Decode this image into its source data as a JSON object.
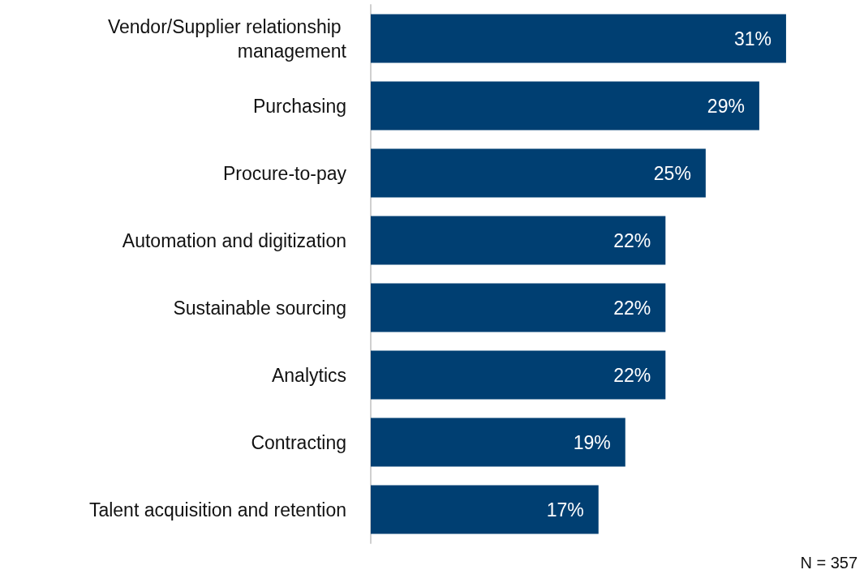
{
  "chart_data": {
    "type": "bar",
    "orientation": "horizontal",
    "categories": [
      "Vendor/Supplier relationship management",
      "Purchasing",
      "Procure-to-pay",
      "Automation and digitization",
      "Sustainable sourcing",
      "Analytics",
      "Contracting",
      "Talent acquisition and retention"
    ],
    "values": [
      31,
      29,
      25,
      22,
      22,
      22,
      19,
      17
    ],
    "value_labels": [
      "31%",
      "29%",
      "25%",
      "22%",
      "22%",
      "22%",
      "19%",
      "17%"
    ],
    "color": "#003f72",
    "annotations": [
      "N = 357"
    ]
  }
}
